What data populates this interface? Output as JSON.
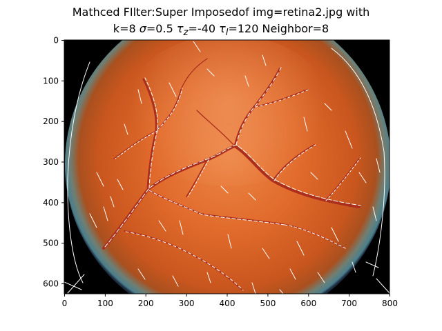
{
  "figure": {
    "title_line1": "Mathced FIlter:Super Imposedof img=retina2.jpg with",
    "title_line2_parts": {
      "k": "k=8",
      "sigma_sym": "σ",
      "sigma_val": "=0.5",
      "tau_z_sym": "τ",
      "tau_z_sub": "z",
      "tau_z_val": "=-40",
      "tau_l_sym": "τ",
      "tau_l_sub": "l",
      "tau_l_val": "=120",
      "neighbor": "Neighbor=8"
    }
  },
  "image": {
    "description_name": "retina fundus image with superimposed white matched-filter vessel detections",
    "colors": {
      "background": "#000000",
      "fundus_center": "#e8743a",
      "fundus_mid": "#d9601f",
      "fundus_edge": "#b84a18",
      "rim": "#5f8a93",
      "vessel": "#b0301d",
      "detection": "#ffffff"
    }
  },
  "axes": {
    "x_ticks": [
      "0",
      "100",
      "200",
      "300",
      "400",
      "500",
      "600",
      "700",
      "800"
    ],
    "y_ticks": [
      "0",
      "100",
      "200",
      "300",
      "400",
      "500",
      "600"
    ],
    "xlim": [
      0,
      800
    ],
    "ylim": [
      625,
      0
    ]
  }
}
